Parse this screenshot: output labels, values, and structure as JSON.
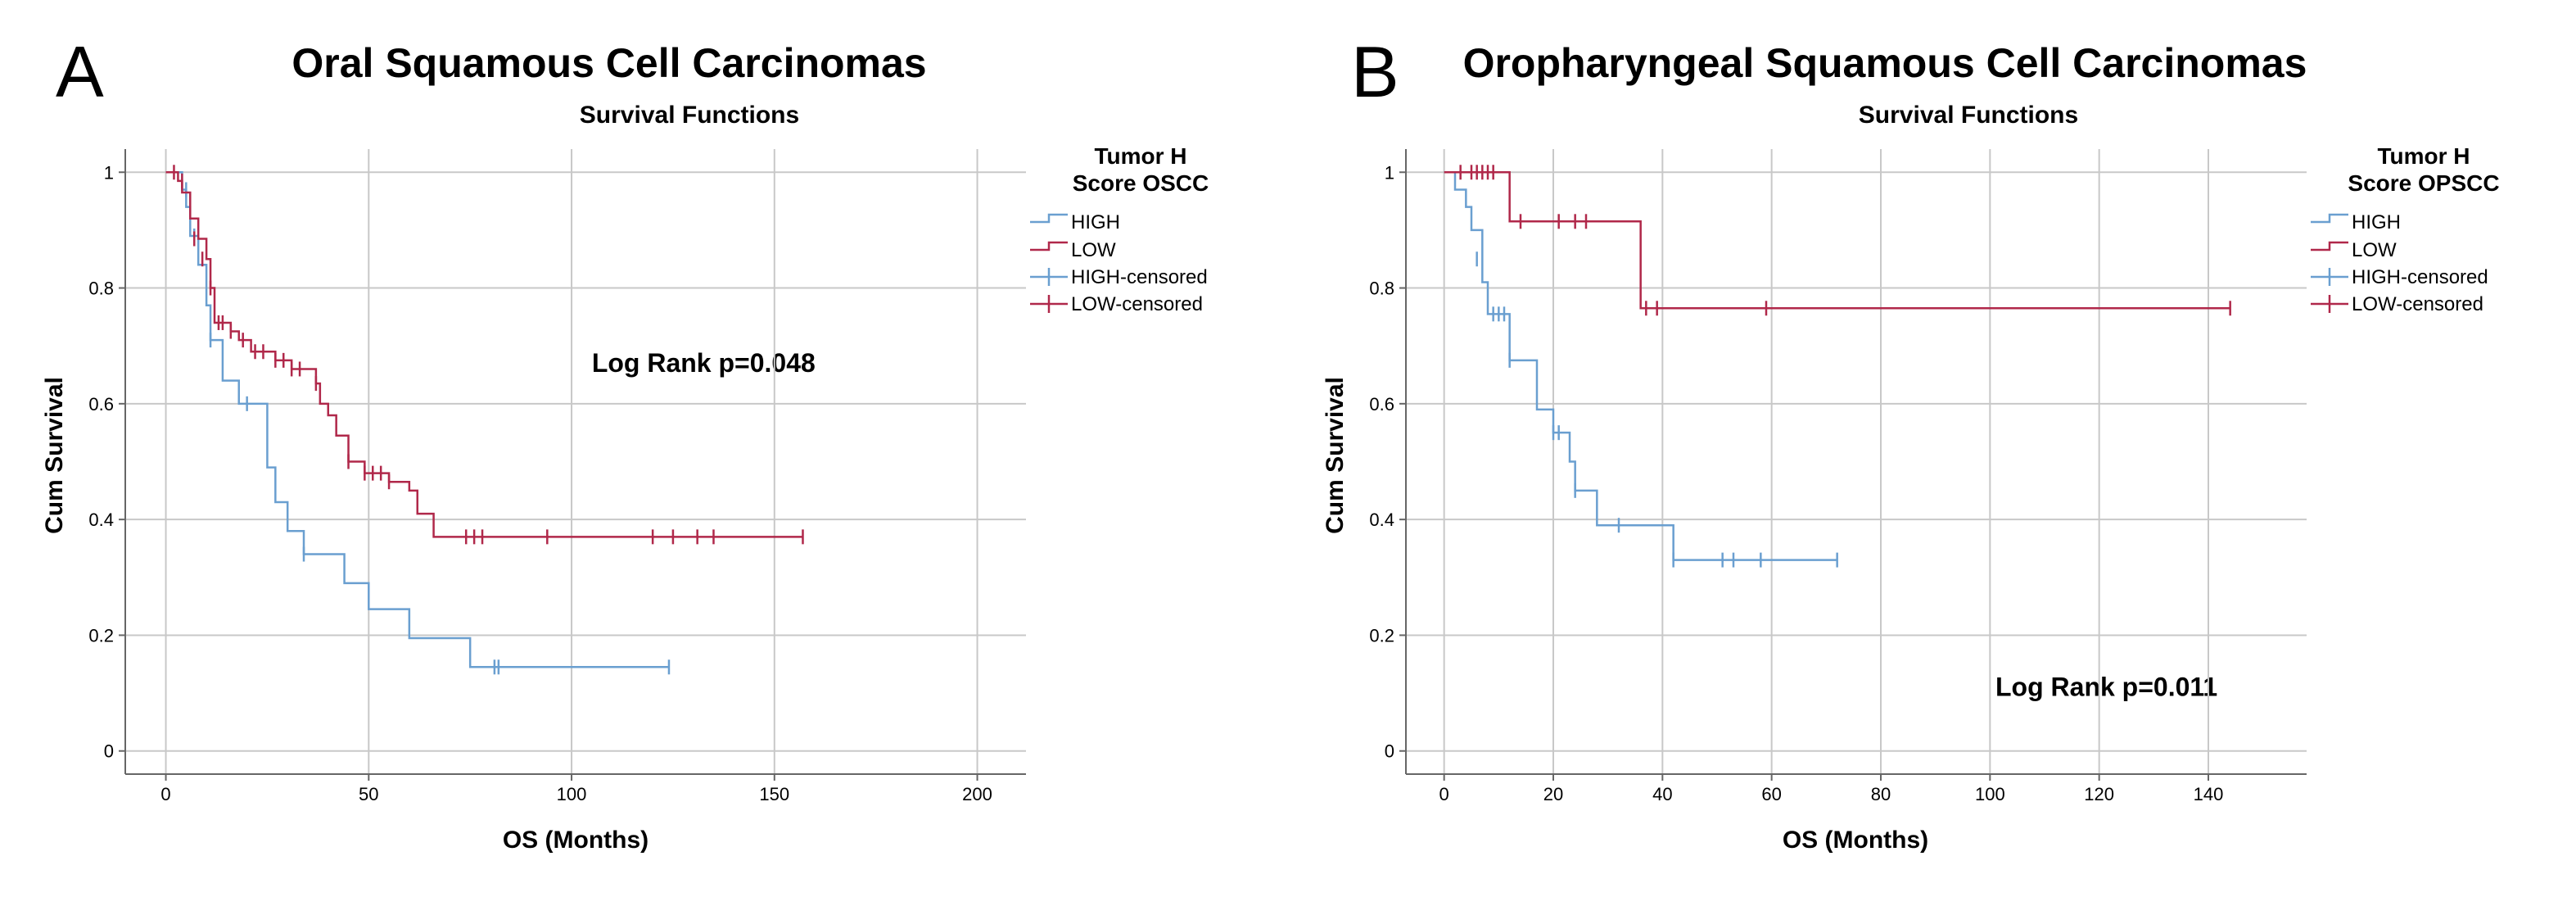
{
  "chart_data": [
    {
      "type": "line",
      "panel_letter": "A",
      "title": "Oral Squamous Cell Carcinomas",
      "subtitle": "Survival Functions",
      "xlabel": "OS (Months)",
      "ylabel": "Cum Survival",
      "xlim": [
        -10,
        212
      ],
      "ylim": [
        -0.04,
        1.04
      ],
      "xticks": [
        0,
        50,
        100,
        150,
        200
      ],
      "yticks": [
        0,
        0.2,
        0.4,
        0.6,
        0.8,
        1
      ],
      "grid": true,
      "annotation": "Log Rank p=0.048",
      "annotation_at": [
        105,
        0.655
      ],
      "legend": {
        "title_lines": [
          "Tumor H",
          "Score OSCC"
        ],
        "position": "right",
        "entries": [
          "HIGH",
          "LOW",
          "HIGH-censored",
          "LOW-censored"
        ]
      },
      "series": [
        {
          "name": "HIGH",
          "color": "#6a9fd0",
          "x": [
            0,
            4,
            5,
            6,
            8,
            10,
            11,
            14,
            18,
            25,
            27,
            30,
            34,
            44,
            50,
            60,
            75,
            124
          ],
          "y": [
            1.0,
            0.97,
            0.94,
            0.89,
            0.84,
            0.77,
            0.71,
            0.64,
            0.6,
            0.49,
            0.43,
            0.38,
            0.34,
            0.29,
            0.245,
            0.195,
            0.145,
            0.145
          ],
          "censored": [
            [
              5,
              0.97
            ],
            [
              7,
              0.89
            ],
            [
              11,
              0.71
            ],
            [
              20,
              0.6
            ],
            [
              34,
              0.34
            ],
            [
              81,
              0.145
            ],
            [
              82,
              0.145
            ],
            [
              124,
              0.145
            ]
          ]
        },
        {
          "name": "LOW",
          "color": "#b0284a",
          "x": [
            0,
            3,
            4,
            6,
            8,
            10,
            11,
            12,
            16,
            18,
            21,
            27,
            31,
            37,
            38,
            40,
            42,
            45,
            49,
            55,
            60,
            62,
            66,
            157
          ],
          "y": [
            1.0,
            0.985,
            0.965,
            0.92,
            0.885,
            0.85,
            0.8,
            0.74,
            0.725,
            0.71,
            0.69,
            0.675,
            0.66,
            0.635,
            0.6,
            0.58,
            0.545,
            0.5,
            0.48,
            0.465,
            0.45,
            0.41,
            0.37,
            0.37
          ],
          "censored": [
            [
              2,
              1.0
            ],
            [
              4,
              0.985
            ],
            [
              7,
              0.885
            ],
            [
              9,
              0.85
            ],
            [
              11,
              0.8
            ],
            [
              13,
              0.74
            ],
            [
              14,
              0.74
            ],
            [
              16,
              0.725
            ],
            [
              19,
              0.71
            ],
            [
              22,
              0.69
            ],
            [
              24,
              0.69
            ],
            [
              27,
              0.675
            ],
            [
              29,
              0.675
            ],
            [
              31,
              0.66
            ],
            [
              33,
              0.66
            ],
            [
              37,
              0.635
            ],
            [
              45,
              0.5
            ],
            [
              49,
              0.48
            ],
            [
              51,
              0.48
            ],
            [
              53,
              0.48
            ],
            [
              55,
              0.465
            ],
            [
              74,
              0.37
            ],
            [
              76,
              0.37
            ],
            [
              78,
              0.37
            ],
            [
              94,
              0.37
            ],
            [
              120,
              0.37
            ],
            [
              125,
              0.37
            ],
            [
              131,
              0.37
            ],
            [
              135,
              0.37
            ],
            [
              157,
              0.37
            ]
          ]
        }
      ]
    },
    {
      "type": "line",
      "panel_letter": "B",
      "title": "Oropharyngeal Squamous Cell Carcinomas",
      "subtitle": "Survival Functions",
      "xlabel": "OS (Months)",
      "ylabel": "Cum Survival",
      "xlim": [
        -7,
        158
      ],
      "ylim": [
        -0.04,
        1.04
      ],
      "xticks": [
        0,
        20,
        40,
        60,
        80,
        100,
        120,
        140
      ],
      "yticks": [
        0,
        0.2,
        0.4,
        0.6,
        0.8,
        1
      ],
      "grid": true,
      "annotation": "Log Rank p=0.011",
      "annotation_at": [
        101,
        0.095
      ],
      "legend": {
        "title_lines": [
          "Tumor H",
          "Score OPSCC"
        ],
        "position": "right",
        "entries": [
          "HIGH",
          "LOW",
          "HIGH-censored",
          "LOW-censored"
        ]
      },
      "series": [
        {
          "name": "HIGH",
          "color": "#6a9fd0",
          "x": [
            0,
            2,
            4,
            5,
            7,
            8,
            12,
            17,
            20,
            23,
            24,
            28,
            42,
            72
          ],
          "y": [
            1.0,
            0.97,
            0.94,
            0.9,
            0.81,
            0.755,
            0.675,
            0.59,
            0.55,
            0.5,
            0.45,
            0.39,
            0.33,
            0.33
          ],
          "censored": [
            [
              6,
              0.85
            ],
            [
              9,
              0.755
            ],
            [
              10,
              0.755
            ],
            [
              11,
              0.755
            ],
            [
              12,
              0.675
            ],
            [
              20,
              0.55
            ],
            [
              21,
              0.55
            ],
            [
              24,
              0.45
            ],
            [
              32,
              0.39
            ],
            [
              42,
              0.33
            ],
            [
              51,
              0.33
            ],
            [
              53,
              0.33
            ],
            [
              58,
              0.33
            ],
            [
              72,
              0.33
            ]
          ]
        },
        {
          "name": "LOW",
          "color": "#b0284a",
          "x": [
            0,
            12,
            36,
            144
          ],
          "y": [
            1.0,
            0.915,
            0.765,
            0.765
          ],
          "censored": [
            [
              3,
              1.0
            ],
            [
              5,
              1.0
            ],
            [
              6,
              1.0
            ],
            [
              7,
              1.0
            ],
            [
              8,
              1.0
            ],
            [
              9,
              1.0
            ],
            [
              14,
              0.915
            ],
            [
              21,
              0.915
            ],
            [
              24,
              0.915
            ],
            [
              26,
              0.915
            ],
            [
              37,
              0.765
            ],
            [
              39,
              0.765
            ],
            [
              59,
              0.765
            ],
            [
              144,
              0.765
            ]
          ]
        }
      ]
    }
  ]
}
